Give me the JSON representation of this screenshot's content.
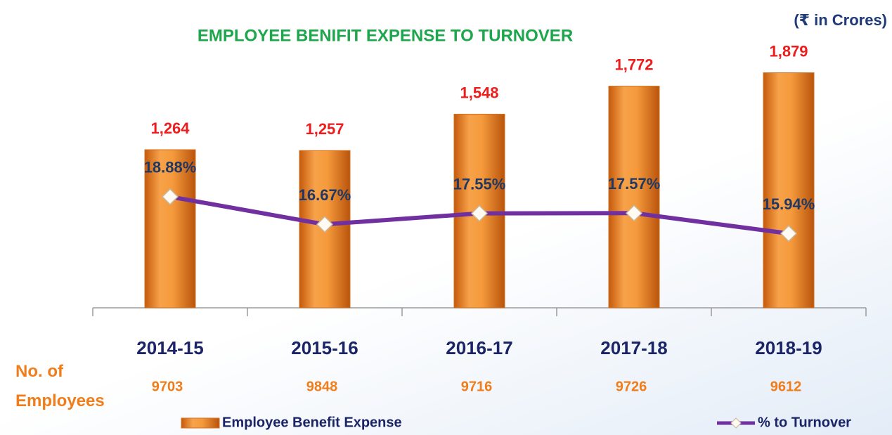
{
  "chart_data": {
    "type": "combo",
    "title": "EMPLOYEE BENIFIT EXPENSE TO TURNOVER",
    "unit_label": "(₹ in Crores)",
    "categories": [
      "2014-15",
      "2015-16",
      "2016-17",
      "2017-18",
      "2018-19"
    ],
    "ylim": [
      0,
      2000
    ],
    "y2lim": [
      10,
      30
    ],
    "series": [
      {
        "name": "Employee Benefit Expense",
        "type": "bar",
        "color": "#f08a24",
        "values": [
          1264,
          1257,
          1548,
          1772,
          1879
        ],
        "value_labels": [
          "1,264",
          "1,257",
          "1,548",
          "1,772",
          "1,879"
        ]
      },
      {
        "name": "% to Turnover",
        "type": "line",
        "axis": "y2",
        "color": "#7030a0",
        "values": [
          18.88,
          16.67,
          17.55,
          17.57,
          15.94
        ],
        "value_labels": [
          "18.88%",
          "16.67%",
          "17.55%",
          "17.57%",
          "15.94%"
        ]
      }
    ],
    "employees": {
      "label": "No. of Employees",
      "values": [
        9703,
        9848,
        9716,
        9726,
        9612
      ]
    }
  }
}
